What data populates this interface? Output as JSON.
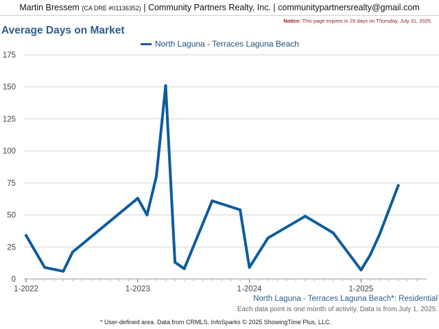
{
  "header": {
    "agent_name": "Martin Bressem",
    "license": "(CA DRE #01136352)",
    "company": "| Community Partners Realty, Inc. |",
    "email": "communitypartnersrealty@gmail.com"
  },
  "notice": {
    "label": "Notice:",
    "text": "This page expires in 29 days on Thursday, July 31, 2025."
  },
  "chart_data": {
    "type": "line",
    "title": "Average Days on Market",
    "series": [
      {
        "name": "North Laguna - Terraces Laguna Beach",
        "x": [
          "2022-01",
          "2022-03",
          "2022-05",
          "2022-06",
          "2023-01",
          "2023-02",
          "2023-03",
          "2023-04",
          "2023-05",
          "2023-06",
          "2023-09",
          "2023-12",
          "2024-01",
          "2024-03",
          "2024-07",
          "2024-10",
          "2025-01",
          "2025-02",
          "2025-03",
          "2025-05"
        ],
        "values": [
          34,
          9,
          6,
          21,
          63,
          50,
          80,
          151,
          13,
          8,
          61,
          54,
          9,
          32,
          49,
          36,
          7,
          19,
          35,
          73
        ]
      }
    ],
    "ylim": [
      0,
      175
    ],
    "yticks": [
      "0",
      "25",
      "50",
      "75",
      "100",
      "125",
      "150",
      "175"
    ],
    "xticks": [
      "1-2022",
      "1-2023",
      "1-2024",
      "1-2025"
    ],
    "color": "#0d5c9e",
    "grid": true
  },
  "subtitle": "North Laguna - Terraces Laguna Beach*: Residential",
  "note": "Each data point is one month of activity. Data is from July 1, 2025.",
  "footer": "* User-defined area. Data from CRMLS. InfoSparks © 2025 ShowingTime Plus, LLC."
}
